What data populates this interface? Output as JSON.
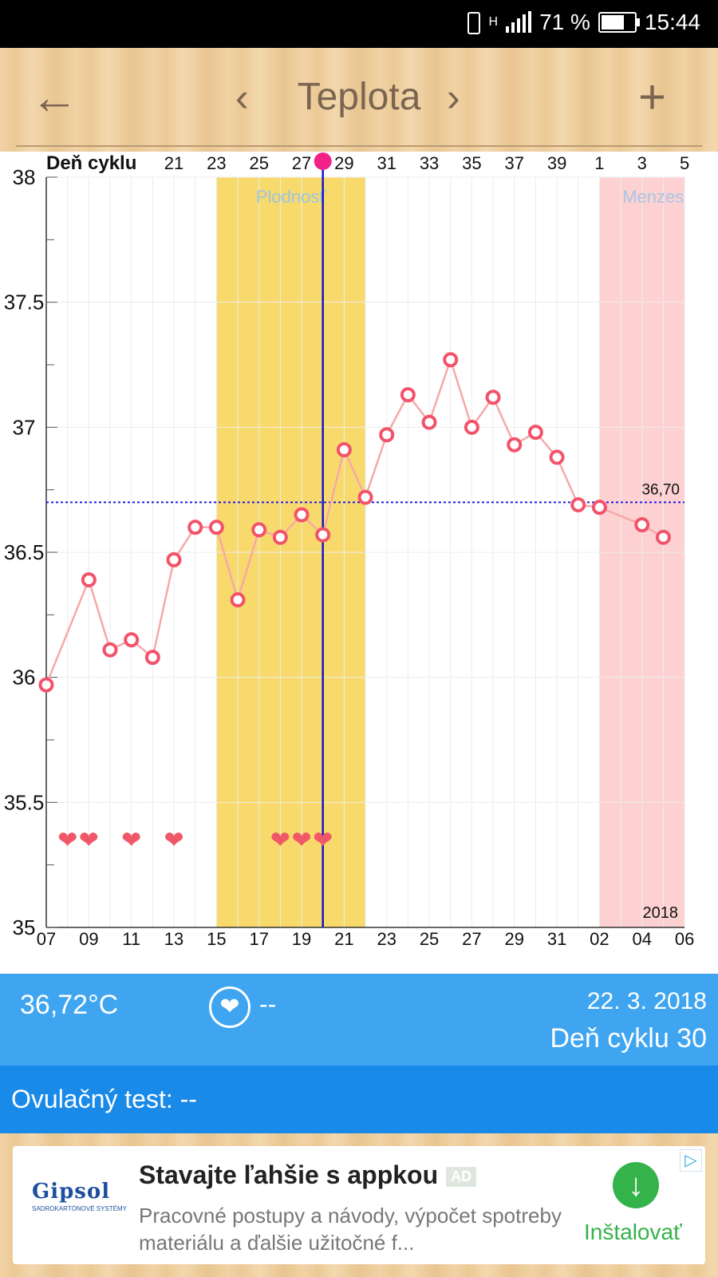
{
  "status_bar": {
    "network": "H",
    "battery": "71 %",
    "battery_level": 0.71,
    "time": "15:44"
  },
  "header": {
    "title": "Teplota",
    "back_icon": "arrow-left-icon",
    "prev_icon": "chevron-left-icon",
    "next_icon": "chevron-right-icon",
    "add_icon": "plus-icon"
  },
  "chart_data": {
    "type": "line",
    "cycle_axis_label": "Deň cyklu",
    "cycle_tick_labels": [
      "21",
      "23",
      "25",
      "27",
      "29",
      "31",
      "33",
      "35",
      "37",
      "39",
      "1",
      "3",
      "5"
    ],
    "date_tick_labels": [
      "07",
      "09",
      "11",
      "13",
      "15",
      "17",
      "19",
      "21",
      "23",
      "25",
      "27",
      "29",
      "31",
      "02",
      "04",
      "06"
    ],
    "y_tick_labels": [
      "38",
      "37.5",
      "37",
      "36.5",
      "36",
      "35.5",
      "35"
    ],
    "ylim": [
      35,
      38
    ],
    "day_range": [
      0,
      30
    ],
    "temperatures": [
      {
        "day": 0,
        "temp": 35.97
      },
      {
        "day": 2,
        "temp": 36.39
      },
      {
        "day": 3,
        "temp": 36.11
      },
      {
        "day": 4,
        "temp": 36.15
      },
      {
        "day": 5,
        "temp": 36.08
      },
      {
        "day": 6,
        "temp": 36.47
      },
      {
        "day": 7,
        "temp": 36.6
      },
      {
        "day": 8,
        "temp": 36.6
      },
      {
        "day": 9,
        "temp": 36.31
      },
      {
        "day": 10,
        "temp": 36.59
      },
      {
        "day": 11,
        "temp": 36.56
      },
      {
        "day": 12,
        "temp": 36.65
      },
      {
        "day": 13,
        "temp": 36.57
      },
      {
        "day": 14,
        "temp": 36.91
      },
      {
        "day": 15,
        "temp": 36.72
      },
      {
        "day": 16,
        "temp": 36.97
      },
      {
        "day": 17,
        "temp": 37.13
      },
      {
        "day": 18,
        "temp": 37.02
      },
      {
        "day": 19,
        "temp": 37.27
      },
      {
        "day": 20,
        "temp": 37.0
      },
      {
        "day": 21,
        "temp": 37.12
      },
      {
        "day": 22,
        "temp": 36.93
      },
      {
        "day": 23,
        "temp": 36.98
      },
      {
        "day": 24,
        "temp": 36.88
      },
      {
        "day": 25,
        "temp": 36.69
      },
      {
        "day": 26,
        "temp": 36.68
      },
      {
        "day": 28,
        "temp": 36.61
      },
      {
        "day": 29,
        "temp": 36.56
      }
    ],
    "heart_days": [
      1,
      2,
      4,
      6,
      11,
      12,
      13
    ],
    "heart_level": 35.35,
    "bands": [
      {
        "label": "Plodnosť",
        "start": 8,
        "end": 15,
        "color": "#f8da6c",
        "label_color": "#9ec3e6"
      },
      {
        "label": "Menzes",
        "start": 26,
        "end": 30,
        "color": "#fdd1d1",
        "label_color": "#a7c6e6"
      }
    ],
    "selected_day": 13,
    "threshold": {
      "value": 36.7,
      "label": "36,70",
      "color": "#1e1ee6"
    },
    "year_label": "2018",
    "line_color": "#f7a8a8",
    "point_color": "#f2536a",
    "heart_color": "#f05868",
    "marker_color": "#f0228a"
  },
  "info": {
    "temperature": "36,72°C",
    "sex": "--",
    "date": "22. 3. 2018",
    "cycle_day": "Deň cyklu 30"
  },
  "ovulation": {
    "label": "Ovulačný test: --"
  },
  "ad": {
    "logo": "Gipsol",
    "logo_tagline": "SADROKARTÓNOVÉ SYSTÉMY",
    "headline": "Stavajte ľahšie s appkou",
    "badge": "AD",
    "description": "Pracovné postupy a návody, výpočet spotreby materiálu a ďalšie užitočné f...",
    "install": "Inštalovať"
  }
}
